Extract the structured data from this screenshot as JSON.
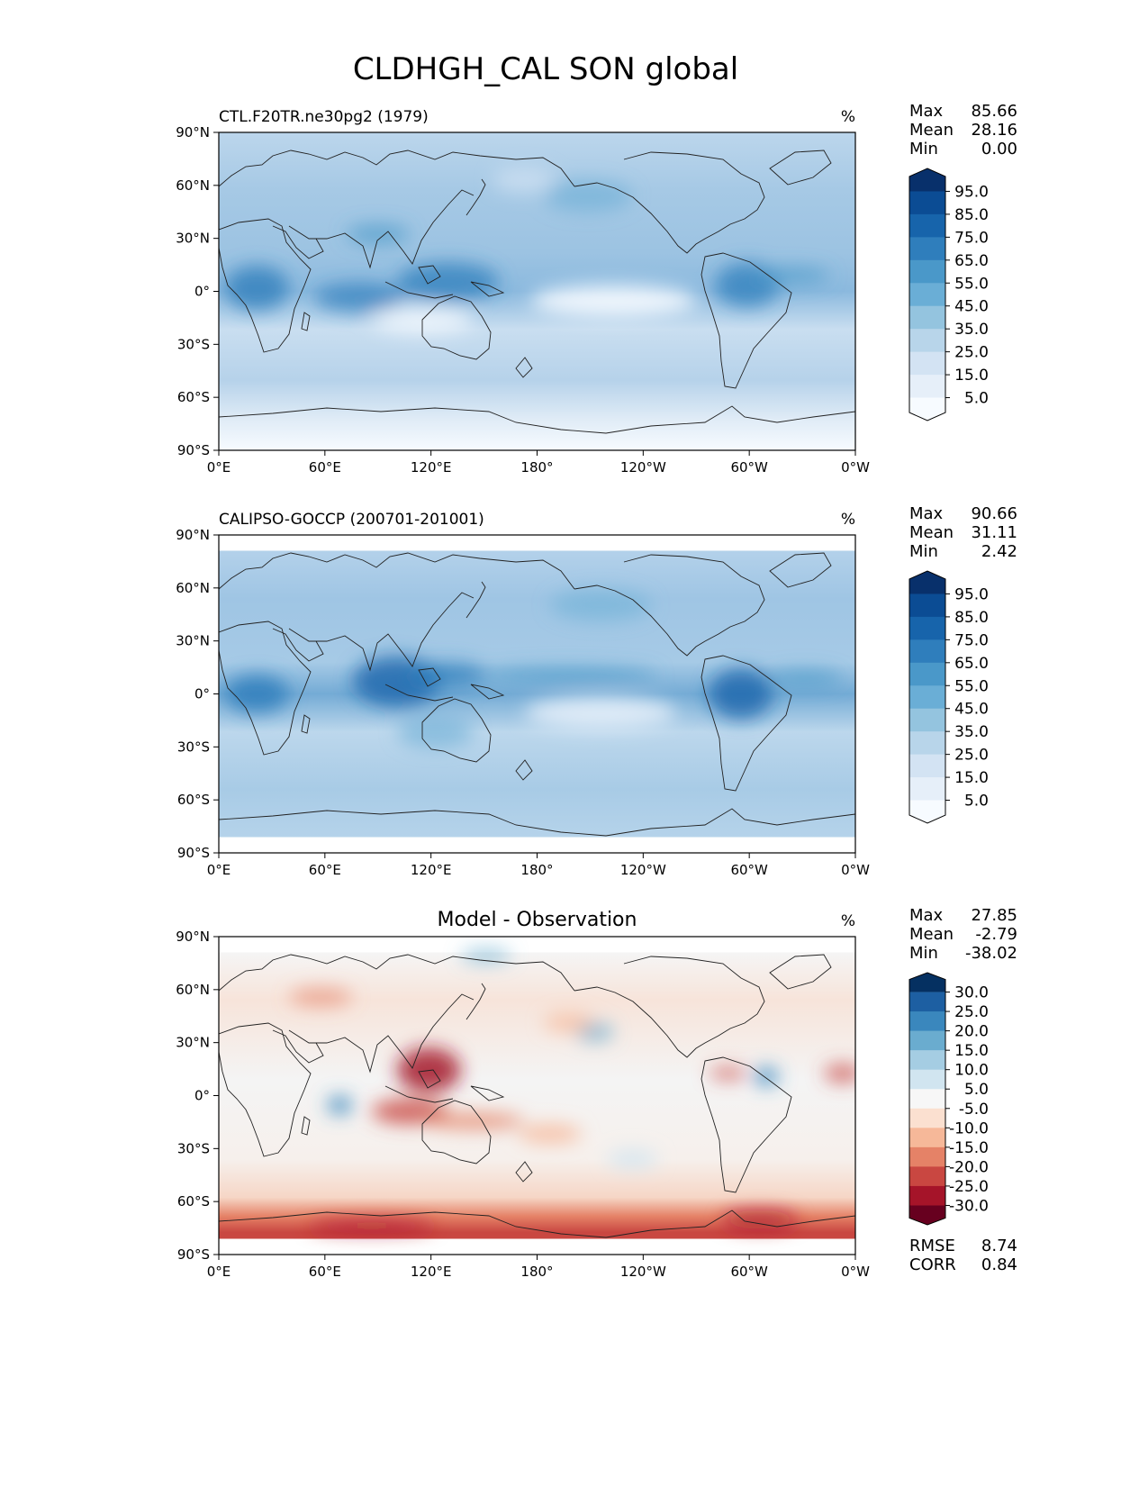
{
  "chart_data": [
    {
      "type": "heatmap",
      "suptitle": "CLDHGH_CAL SON global",
      "title_left": "CTL.F20TR.ne30pg2 (1979)",
      "title_center": "",
      "units": "%",
      "stats": [
        {
          "label": "Max",
          "value": "85.66"
        },
        {
          "label": "Mean",
          "value": "28.16"
        },
        {
          "label": "Min",
          "value": "0.00"
        }
      ],
      "colorbar": {
        "ticks": [
          "95.0",
          "85.0",
          "75.0",
          "65.0",
          "55.0",
          "45.0",
          "35.0",
          "25.0",
          "15.0",
          "5.0"
        ],
        "colors": [
          "#08306b",
          "#0b4c94",
          "#1764ab",
          "#2f7ebc",
          "#4a98c9",
          "#6aaed6",
          "#94c4df",
          "#b8d5ea",
          "#d3e3f3",
          "#e6eff9",
          "#f7fbff"
        ]
      },
      "x_ticks": [
        "0°E",
        "60°E",
        "120°E",
        "180°",
        "120°W",
        "60°W",
        "0°W"
      ],
      "y_ticks": [
        "90°N",
        "60°N",
        "30°N",
        "0°",
        "30°S",
        "60°S",
        "90°S"
      ],
      "xlim": [
        0,
        360
      ],
      "ylim": [
        -90,
        90
      ]
    },
    {
      "type": "heatmap",
      "title_left": "CALIPSO-GOCCP (200701-201001)",
      "title_center": "",
      "units": "%",
      "stats": [
        {
          "label": "Max",
          "value": "90.66"
        },
        {
          "label": "Mean",
          "value": "31.11"
        },
        {
          "label": "Min",
          "value": "2.42"
        }
      ],
      "colorbar": {
        "ticks": [
          "95.0",
          "85.0",
          "75.0",
          "65.0",
          "55.0",
          "45.0",
          "35.0",
          "25.0",
          "15.0",
          "5.0"
        ],
        "colors": [
          "#08306b",
          "#0b4c94",
          "#1764ab",
          "#2f7ebc",
          "#4a98c9",
          "#6aaed6",
          "#94c4df",
          "#b8d5ea",
          "#d3e3f3",
          "#e6eff9",
          "#f7fbff"
        ]
      },
      "x_ticks": [
        "0°E",
        "60°E",
        "120°E",
        "180°",
        "120°W",
        "60°W",
        "0°W"
      ],
      "y_ticks": [
        "90°N",
        "60°N",
        "30°N",
        "0°",
        "30°S",
        "60°S",
        "90°S"
      ],
      "xlim": [
        0,
        360
      ],
      "ylim": [
        -90,
        90
      ]
    },
    {
      "type": "heatmap",
      "title_left": "",
      "title_center": "Model - Observation",
      "units": "%",
      "stats": [
        {
          "label": "Max",
          "value": "27.85"
        },
        {
          "label": "Mean",
          "value": "-2.79"
        },
        {
          "label": "Min",
          "value": "-38.02"
        }
      ],
      "colorbar": {
        "ticks": [
          "30.0",
          "25.0",
          "20.0",
          "15.0",
          "10.0",
          "5.0",
          "-5.0",
          "-10.0",
          "-15.0",
          "-20.0",
          "-25.0",
          "-30.0"
        ],
        "colors": [
          "#053061",
          "#1d5fa2",
          "#3a87bd",
          "#6aaccf",
          "#a5cde3",
          "#d1e5f0",
          "#f7f7f7",
          "#fbe0d0",
          "#f6b899",
          "#e58267",
          "#c94741",
          "#a51429",
          "#67001f"
        ]
      },
      "bottom_stats": [
        {
          "label": "RMSE",
          "value": "8.74"
        },
        {
          "label": "CORR",
          "value": "0.84"
        }
      ],
      "x_ticks": [
        "0°E",
        "60°E",
        "120°E",
        "180°",
        "120°W",
        "60°W",
        "0°W"
      ],
      "y_ticks": [
        "90°N",
        "60°N",
        "30°N",
        "0°",
        "30°S",
        "60°S",
        "90°S"
      ],
      "xlim": [
        0,
        360
      ],
      "ylim": [
        -90,
        90
      ]
    }
  ]
}
